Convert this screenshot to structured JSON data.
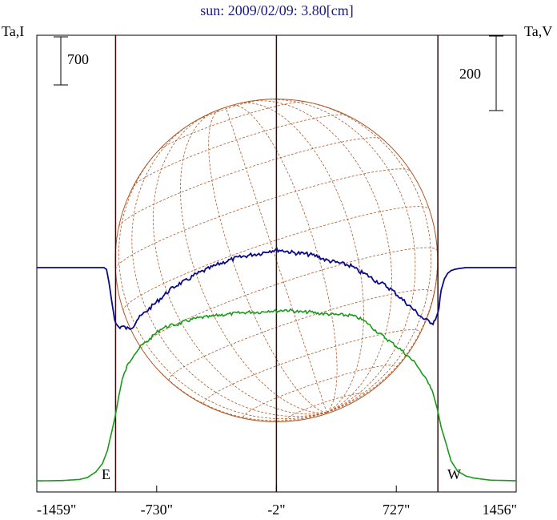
{
  "title": "sun: 2009/02/09: 3.80[cm]",
  "left_axis_label": "Ta,I",
  "right_axis_label": "Ta,V",
  "left_scalebar_label": "700",
  "right_scalebar_label": "200",
  "east_label": "E",
  "west_label": "W",
  "x_ticks": [
    "-1459\"",
    "-730\"",
    "-2\"",
    "727\"",
    "1456\""
  ],
  "colors": {
    "title": "#1a1a8c",
    "stokes_i": "#1a9a1a",
    "stokes_v": "#0a0a8a",
    "grid": "#b05a2a",
    "limb_lines": "#3a0a0a",
    "frame": "#000000"
  },
  "chart_data": {
    "type": "line",
    "title": "sun: 2009/02/09: 3.80[cm]",
    "xlabel": "",
    "x_unit": "arcsec",
    "x_tick_values": [
      -1459,
      -730,
      -2,
      727,
      1456
    ],
    "xlim": [
      -1459,
      1456
    ],
    "vertical_lines_x": [
      -980,
      -2,
      980
    ],
    "solar_disk": {
      "center_x": -2,
      "radius_arcsec": 980
    },
    "series": [
      {
        "name": "Ta,I",
        "scale_bar": 700,
        "x": [
          -1459,
          -1300,
          -1200,
          -1150,
          -1100,
          -1060,
          -1030,
          -1000,
          -980,
          -960,
          -940,
          -910,
          -870,
          -820,
          -780,
          -740,
          -700,
          -650,
          -600,
          -560,
          -500,
          -450,
          -400,
          -350,
          -300,
          -250,
          -200,
          -150,
          -100,
          -50,
          0,
          50,
          100,
          150,
          200,
          250,
          300,
          350,
          400,
          450,
          500,
          550,
          600,
          650,
          700,
          750,
          800,
          850,
          900,
          930,
          950,
          975,
          1000,
          1030,
          1060,
          1100,
          1150,
          1200,
          1300,
          1456
        ],
        "values": [
          10,
          15,
          30,
          60,
          140,
          260,
          450,
          760,
          980,
          1250,
          1480,
          1680,
          1850,
          1985,
          2055,
          2150,
          2230,
          2270,
          2290,
          2330,
          2370,
          2390,
          2400,
          2425,
          2435,
          2450,
          2460,
          2470,
          2465,
          2490,
          2480,
          2500,
          2485,
          2465,
          2470,
          2450,
          2440,
          2430,
          2425,
          2420,
          2380,
          2310,
          2200,
          2110,
          2020,
          1930,
          1820,
          1710,
          1510,
          1420,
          1290,
          1070,
          790,
          550,
          300,
          150,
          80,
          50,
          20,
          12
        ]
      },
      {
        "name": "Ta,V",
        "scale_bar": 200,
        "x": [
          -1459,
          -1200,
          -1070,
          -1050,
          -1035,
          -1020,
          -1000,
          -980,
          -960,
          -940,
          -900,
          -870,
          -850,
          -800,
          -750,
          -700,
          -650,
          -600,
          -550,
          -500,
          -450,
          -400,
          -350,
          -300,
          -250,
          -200,
          -150,
          -100,
          -50,
          0,
          50,
          100,
          150,
          200,
          250,
          300,
          350,
          400,
          450,
          500,
          550,
          600,
          650,
          700,
          750,
          800,
          850,
          900,
          950,
          980,
          1000,
          1020,
          1040,
          1060,
          1080,
          1100,
          1150,
          1456
        ],
        "values": [
          0,
          0,
          0,
          0,
          -5,
          -40,
          -100,
          -150,
          -160,
          -158,
          -165,
          -155,
          -140,
          -120,
          -100,
          -80,
          -60,
          -45,
          -35,
          -20,
          -10,
          0,
          10,
          18,
          25,
          30,
          35,
          38,
          45,
          48,
          45,
          40,
          38,
          35,
          30,
          20,
          15,
          10,
          5,
          -10,
          -20,
          -35,
          -45,
          -60,
          -80,
          -100,
          -120,
          -140,
          -148,
          -125,
          -60,
          -30,
          -15,
          -8,
          -5,
          -3,
          0,
          0
        ]
      }
    ]
  }
}
